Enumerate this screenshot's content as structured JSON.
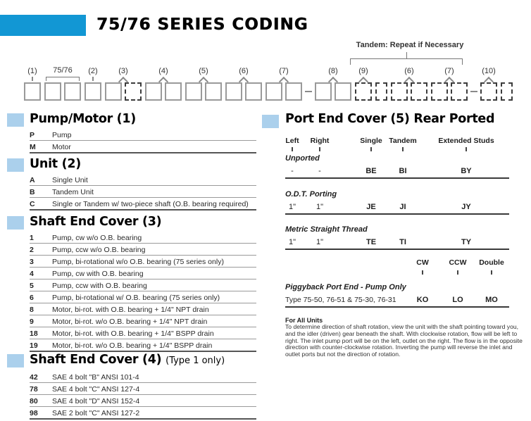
{
  "title": "75/76 SERIES CODING",
  "colors": {
    "accent": "#1297d4",
    "section_marker": "#abd0ec"
  },
  "diagram": {
    "tandem_note": "Tandem: Repeat if Necessary",
    "groups": [
      {
        "label": "(1)",
        "marker": "tick",
        "boxes": [
          "s"
        ]
      },
      {
        "label": "75/76",
        "marker": "bracket",
        "boxes": [
          "s",
          "s"
        ]
      },
      {
        "label": "(2)",
        "marker": "tick",
        "boxes": [
          "s"
        ]
      },
      {
        "label": "(3)",
        "marker": "caret",
        "boxes": [
          "s",
          "d"
        ]
      },
      {
        "label": "(4)",
        "marker": "caret",
        "boxes": [
          "s",
          "s"
        ]
      },
      {
        "label": "(5)",
        "marker": "caret",
        "boxes": [
          "s",
          "s"
        ]
      },
      {
        "label": "(6)",
        "marker": "caret",
        "boxes": [
          "s",
          "s"
        ]
      },
      {
        "label": "(7)",
        "marker": "caret",
        "boxes": [
          "s",
          "s"
        ]
      },
      {
        "connector": "hyphen"
      },
      {
        "label": "(8)",
        "marker": "caret",
        "boxes": [
          "s",
          "s"
        ]
      },
      {
        "label": "(9)",
        "marker": "caret",
        "boxes": [
          "d"
        ]
      },
      {
        "connector": "half-l"
      },
      {
        "connector": "half-r"
      },
      {
        "label": "(6)",
        "marker": "caret",
        "boxes": [
          "d",
          "d"
        ]
      },
      {
        "label": "(7)",
        "marker": "caret",
        "boxes": [
          "d",
          "d"
        ]
      },
      {
        "connector": "hyphen"
      },
      {
        "label": "(10)",
        "marker": "caret",
        "boxes": [
          "d"
        ]
      },
      {
        "connector": "half-l"
      },
      {
        "connector": "half-r"
      }
    ]
  },
  "pump_motor": {
    "heading": "Pump/Motor (1)",
    "rows": [
      [
        "P",
        "Pump"
      ],
      [
        "M",
        "Motor"
      ]
    ]
  },
  "unit": {
    "heading": "Unit (2)",
    "rows": [
      [
        "A",
        "Single Unit"
      ],
      [
        "B",
        "Tandem Unit"
      ],
      [
        "C",
        "Single or Tandem w/ two-piece shaft (O.B. bearing required)"
      ]
    ]
  },
  "shaft_end_cover_3": {
    "heading": "Shaft End Cover (3)",
    "rows": [
      [
        "1",
        "Pump, cw w/o O.B. bearing"
      ],
      [
        "2",
        "Pump, ccw w/o O.B. bearing"
      ],
      [
        "3",
        "Pump, bi-rotational w/o O.B. bearing (75 series only)"
      ],
      [
        "4",
        "Pump, cw with O.B. bearing"
      ],
      [
        "5",
        "Pump, ccw with O.B. bearing"
      ],
      [
        "6",
        "Pump, bi-rotational w/ O.B. bearing (75 series only)"
      ],
      [
        "8",
        "Motor, bi-rot. with O.B. bearing + 1/4\" NPT drain"
      ],
      [
        "9",
        "Motor, bi-rot. w/o O.B. bearing + 1/4\" NPT drain"
      ],
      [
        "18",
        "Motor, bi-rot. with O.B. bearing + 1/4\" BSPP drain"
      ],
      [
        "19",
        "Motor, bi-rot. w/o O.B. bearing + 1/4\" BSPP drain"
      ]
    ]
  },
  "shaft_end_cover_4": {
    "heading": "Shaft End Cover (4)",
    "qualifier": "(Type 1 only)",
    "rows": [
      [
        "42",
        "SAE 4 bolt \"B\" ANSI 101-4"
      ],
      [
        "78",
        "SAE 4 bolt \"C\" ANSI 127-4"
      ],
      [
        "80",
        "SAE 4 bolt \"D\" ANSI 152-4"
      ],
      [
        "98",
        "SAE 2 bolt \"C\" ANSI 127-2"
      ]
    ]
  },
  "port_end_cover": {
    "heading": "Port End Cover (5) Rear Ported",
    "columns": [
      "Left",
      "Right",
      "Single",
      "Tandem",
      "Extended Studs"
    ],
    "groups": [
      {
        "label": "Unported",
        "cells": [
          "-",
          "-",
          "BE",
          "BI",
          "BY"
        ]
      },
      {
        "label": "O.D.T. Porting",
        "cells": [
          "1\"",
          "1\"",
          "JE",
          "JI",
          "JY"
        ]
      },
      {
        "label": "Metric Straight Thread",
        "cells": [
          "1\"",
          "1\"",
          "TE",
          "TI",
          "TY"
        ]
      }
    ],
    "rotation_columns": [
      "CW",
      "CCW",
      "Double"
    ],
    "piggyback": {
      "label": "Piggyback Port End - Pump Only",
      "row_label": "Type 75-50, 76-51 & 75-30, 76-31",
      "cells": [
        "KO",
        "LO",
        "MO"
      ]
    },
    "note_heading": "For All Units",
    "note": "To determine direction of shaft rotation, view the unit with the shaft pointing toward you, and the idler (driven) gear beneath the shaft.  With clockwise rotation, flow will be left to right.  The inlet pump port will be on the left, outlet on the right.  The flow is in the opposite direction with counter-clockwise rotation.  Inverting the pump will reverse the inlet and outlet ports but not the direction of rotation."
  }
}
